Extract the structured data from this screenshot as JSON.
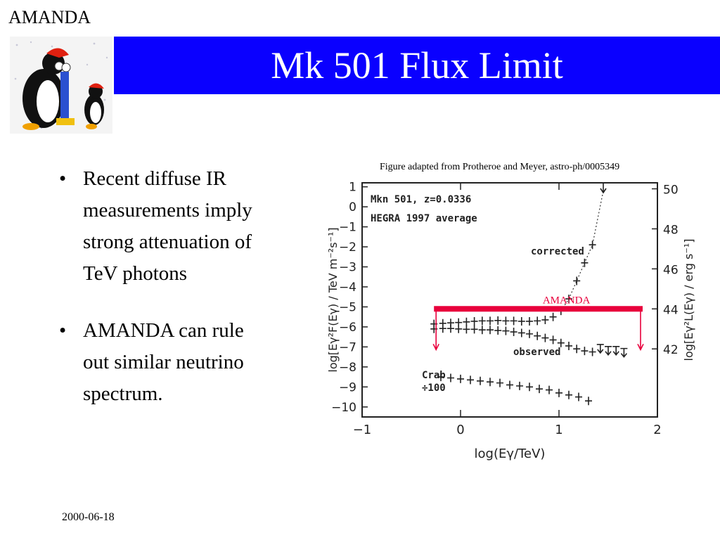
{
  "corner_label": "AMANDA",
  "title": "Mk 501 Flux Limit",
  "bullets": [
    {
      "line1": "Recent diffuse IR",
      "line2": "measurements imply",
      "line3": "strong attenuation of",
      "line4": "TeV photons"
    },
    {
      "line1": "AMANDA can rule",
      "line2": "out similar neutrino",
      "line3": "spectrum."
    }
  ],
  "caption": "Figure adapted from Protheroe and Meyer, astro-ph/0005349",
  "date": "2000-06-18",
  "chart_data": {
    "type": "scatter",
    "annotations": [
      "Mkn 501, z=0.0336",
      "HEGRA 1997 average",
      "corrected",
      "observed",
      "Crab",
      "÷100"
    ],
    "xlabel": "log(Eγ/TeV)",
    "ylabel_left": "log[Eγ²F(Eγ) / TeV m⁻²s⁻¹]",
    "ylabel_right": "log[Eγ²L(Eγ) / erg s⁻¹]",
    "xlim": [
      -1,
      2
    ],
    "ylim": [
      -10.5,
      1.2
    ],
    "x_ticks": [
      "−1",
      "0",
      "1",
      "2"
    ],
    "y_ticks_left": [
      "1",
      "0",
      "−1",
      "−2",
      "−3",
      "−4",
      "−5",
      "−6",
      "−7",
      "−8",
      "−9",
      "−10"
    ],
    "y_ticks_right": [
      "50",
      "48",
      "46",
      "44",
      "42"
    ],
    "series": [
      {
        "name": "corrected",
        "x": [
          -0.27,
          -0.18,
          -0.1,
          -0.02,
          0.06,
          0.14,
          0.22,
          0.3,
          0.38,
          0.46,
          0.54,
          0.62,
          0.7,
          0.78,
          0.86,
          0.94,
          1.02,
          1.1,
          1.18,
          1.26,
          1.34
        ],
        "y": [
          -5.85,
          -5.82,
          -5.8,
          -5.78,
          -5.75,
          -5.72,
          -5.7,
          -5.7,
          -5.68,
          -5.7,
          -5.7,
          -5.72,
          -5.72,
          -5.7,
          -5.65,
          -5.5,
          -5.2,
          -4.6,
          -3.7,
          -2.8,
          -1.9
        ]
      },
      {
        "name": "observed",
        "x": [
          -0.27,
          -0.18,
          -0.1,
          -0.02,
          0.06,
          0.14,
          0.22,
          0.3,
          0.38,
          0.46,
          0.54,
          0.62,
          0.7,
          0.78,
          0.86,
          0.94,
          1.02,
          1.1,
          1.18,
          1.26,
          1.34
        ],
        "y": [
          -6.1,
          -6.08,
          -6.08,
          -6.1,
          -6.12,
          -6.12,
          -6.15,
          -6.15,
          -6.18,
          -6.2,
          -6.25,
          -6.3,
          -6.35,
          -6.45,
          -6.55,
          -6.65,
          -6.8,
          -6.95,
          -7.1,
          -7.2,
          -7.25
        ]
      },
      {
        "name": "Crab",
        "x": [
          -0.2,
          -0.1,
          0.0,
          0.1,
          0.2,
          0.3,
          0.4,
          0.5,
          0.6,
          0.7,
          0.8,
          0.9,
          1.0,
          1.1,
          1.2,
          1.3
        ],
        "y": [
          -8.5,
          -8.55,
          -8.6,
          -8.65,
          -8.7,
          -8.75,
          -8.8,
          -8.9,
          -8.95,
          -9.0,
          -9.1,
          -9.15,
          -9.3,
          -9.4,
          -9.5,
          -9.7
        ]
      }
    ],
    "upper_limits_x": [
      1.42,
      1.5,
      1.58,
      1.66
    ],
    "upper_limits_y": [
      -7.3,
      -7.4,
      -7.4,
      -7.5
    ],
    "amanda_limit": {
      "label": "AMANDA",
      "x_range": [
        -0.27,
        1.85
      ],
      "y": -5.1,
      "color": "#e8003c"
    }
  }
}
